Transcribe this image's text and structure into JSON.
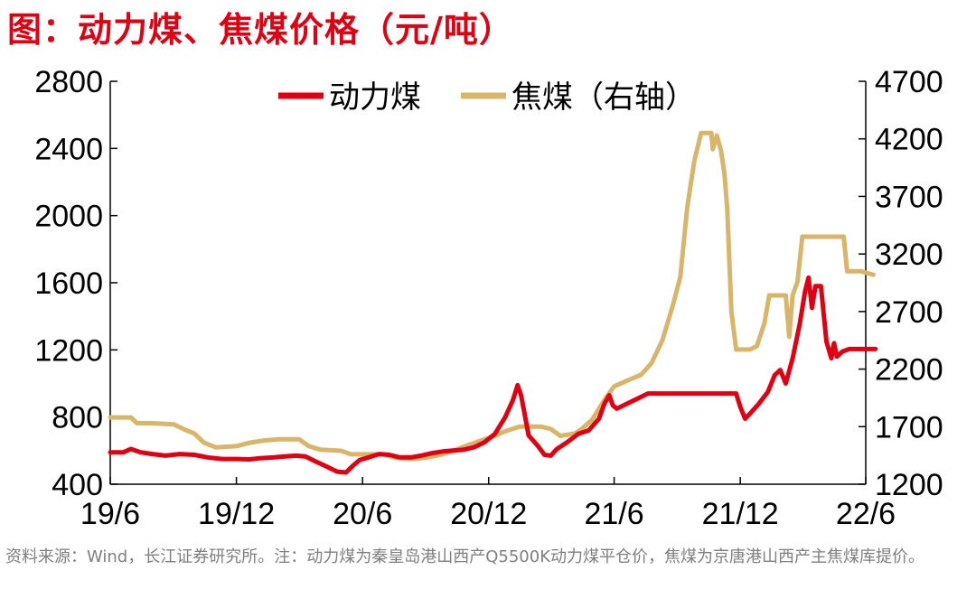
{
  "title": "图：动力煤、焦煤价格（元/吨）",
  "footnote": "资料来源：Wind，长江证券研究所。注：动力煤为秦皇岛港山西产Q5500K动力煤平仓价，焦煤为京唐港山西产主焦煤库提价。",
  "colors": {
    "title": "#e00012",
    "thermal": "#e00012",
    "coking": "#d9b56a",
    "axis": "#000000"
  },
  "chart_data": {
    "type": "line",
    "x_ticks": [
      "19/6",
      "19/12",
      "20/6",
      "20/12",
      "21/6",
      "21/12",
      "22/6"
    ],
    "x_range": [
      "2019-06",
      "2022-06"
    ],
    "y_left": {
      "ticks": [
        400,
        800,
        1200,
        1600,
        2000,
        2400,
        2800
      ],
      "range": [
        400,
        2800
      ]
    },
    "y_right": {
      "ticks": [
        1200,
        1700,
        2200,
        2700,
        3200,
        3700,
        4200,
        4700
      ],
      "range": [
        1200,
        4700
      ]
    },
    "legend": {
      "position": "top-center",
      "entries": [
        "动力煤",
        "焦煤（右轴）"
      ]
    },
    "series": [
      {
        "name": "动力煤",
        "axis": "left",
        "points": [
          [
            "2019-06-01",
            590
          ],
          [
            "2019-06-20",
            590
          ],
          [
            "2019-07-01",
            610
          ],
          [
            "2019-07-15",
            590
          ],
          [
            "2019-08-01",
            580
          ],
          [
            "2019-08-20",
            570
          ],
          [
            "2019-09-10",
            580
          ],
          [
            "2019-10-01",
            575
          ],
          [
            "2019-10-20",
            560
          ],
          [
            "2019-11-10",
            550
          ],
          [
            "2019-12-01",
            550
          ],
          [
            "2019-12-20",
            548
          ],
          [
            "2020-01-05",
            555
          ],
          [
            "2020-01-25",
            560
          ],
          [
            "2020-02-10",
            565
          ],
          [
            "2020-02-25",
            570
          ],
          [
            "2020-03-10",
            565
          ],
          [
            "2020-03-25",
            535
          ],
          [
            "2020-04-10",
            505
          ],
          [
            "2020-04-25",
            475
          ],
          [
            "2020-05-08",
            470
          ],
          [
            "2020-05-18",
            510
          ],
          [
            "2020-05-28",
            545
          ],
          [
            "2020-06-10",
            560
          ],
          [
            "2020-06-25",
            580
          ],
          [
            "2020-07-10",
            575
          ],
          [
            "2020-07-25",
            560
          ],
          [
            "2020-08-10",
            560
          ],
          [
            "2020-08-25",
            570
          ],
          [
            "2020-09-10",
            585
          ],
          [
            "2020-09-25",
            595
          ],
          [
            "2020-10-10",
            600
          ],
          [
            "2020-10-25",
            605
          ],
          [
            "2020-11-10",
            620
          ],
          [
            "2020-11-25",
            650
          ],
          [
            "2020-12-10",
            700
          ],
          [
            "2020-12-25",
            800
          ],
          [
            "2021-01-05",
            900
          ],
          [
            "2021-01-12",
            990
          ],
          [
            "2021-01-17",
            930
          ],
          [
            "2021-01-28",
            690
          ],
          [
            "2021-02-10",
            630
          ],
          [
            "2021-02-20",
            575
          ],
          [
            "2021-03-01",
            570
          ],
          [
            "2021-03-10",
            610
          ],
          [
            "2021-03-25",
            650
          ],
          [
            "2021-04-10",
            700
          ],
          [
            "2021-04-25",
            720
          ],
          [
            "2021-05-10",
            790
          ],
          [
            "2021-05-18",
            880
          ],
          [
            "2021-05-25",
            930
          ],
          [
            "2021-05-30",
            870
          ],
          [
            "2021-06-05",
            850
          ],
          [
            "2021-06-20",
            880
          ],
          [
            "2021-07-05",
            910
          ],
          [
            "2021-07-20",
            940
          ],
          [
            "2021-08-01",
            940
          ],
          [
            "2021-09-01",
            940
          ],
          [
            "2021-10-01",
            940
          ],
          [
            "2021-11-01",
            940
          ],
          [
            "2021-11-25",
            940
          ],
          [
            "2021-12-01",
            860
          ],
          [
            "2021-12-08",
            790
          ],
          [
            "2021-12-15",
            820
          ],
          [
            "2021-12-28",
            880
          ],
          [
            "2022-01-10",
            950
          ],
          [
            "2022-01-20",
            1050
          ],
          [
            "2022-01-28",
            1080
          ],
          [
            "2022-02-05",
            1000
          ],
          [
            "2022-02-15",
            1150
          ],
          [
            "2022-02-25",
            1350
          ],
          [
            "2022-03-05",
            1550
          ],
          [
            "2022-03-10",
            1630
          ],
          [
            "2022-03-15",
            1450
          ],
          [
            "2022-03-20",
            1580
          ],
          [
            "2022-03-28",
            1580
          ],
          [
            "2022-04-05",
            1250
          ],
          [
            "2022-04-12",
            1150
          ],
          [
            "2022-04-16",
            1240
          ],
          [
            "2022-04-20",
            1160
          ],
          [
            "2022-04-28",
            1190
          ],
          [
            "2022-05-08",
            1205
          ],
          [
            "2022-05-25",
            1205
          ],
          [
            "2022-06-15",
            1205
          ]
        ]
      },
      {
        "name": "焦煤（右轴）",
        "axis": "right",
        "points": [
          [
            "2019-06-01",
            1780
          ],
          [
            "2019-07-01",
            1780
          ],
          [
            "2019-07-10",
            1730
          ],
          [
            "2019-08-01",
            1730
          ],
          [
            "2019-09-01",
            1720
          ],
          [
            "2019-09-15",
            1680
          ],
          [
            "2019-10-01",
            1640
          ],
          [
            "2019-10-15",
            1560
          ],
          [
            "2019-11-01",
            1520
          ],
          [
            "2019-12-01",
            1530
          ],
          [
            "2019-12-20",
            1560
          ],
          [
            "2020-01-10",
            1580
          ],
          [
            "2020-02-01",
            1590
          ],
          [
            "2020-03-01",
            1590
          ],
          [
            "2020-03-15",
            1530
          ],
          [
            "2020-04-01",
            1500
          ],
          [
            "2020-05-01",
            1490
          ],
          [
            "2020-05-15",
            1460
          ],
          [
            "2020-06-01",
            1460
          ],
          [
            "2020-07-01",
            1460
          ],
          [
            "2020-07-20",
            1430
          ],
          [
            "2020-08-10",
            1420
          ],
          [
            "2020-09-01",
            1430
          ],
          [
            "2020-09-25",
            1460
          ],
          [
            "2020-10-15",
            1500
          ],
          [
            "2020-11-01",
            1540
          ],
          [
            "2020-11-20",
            1580
          ],
          [
            "2020-12-10",
            1620
          ],
          [
            "2020-12-25",
            1660
          ],
          [
            "2021-01-15",
            1700
          ],
          [
            "2021-02-15",
            1700
          ],
          [
            "2021-03-01",
            1680
          ],
          [
            "2021-03-15",
            1620
          ],
          [
            "2021-04-05",
            1640
          ],
          [
            "2021-04-15",
            1680
          ],
          [
            "2021-04-30",
            1760
          ],
          [
            "2021-05-20",
            1950
          ],
          [
            "2021-06-01",
            2050
          ],
          [
            "2021-06-20",
            2100
          ],
          [
            "2021-07-10",
            2150
          ],
          [
            "2021-07-25",
            2250
          ],
          [
            "2021-08-10",
            2450
          ],
          [
            "2021-08-25",
            2750
          ],
          [
            "2021-09-05",
            3000
          ],
          [
            "2021-09-15",
            3600
          ],
          [
            "2021-09-25",
            4000
          ],
          [
            "2021-10-05",
            4250
          ],
          [
            "2021-10-20",
            4250
          ],
          [
            "2021-10-22",
            4110
          ],
          [
            "2021-10-28",
            4230
          ],
          [
            "2021-11-03",
            4100
          ],
          [
            "2021-11-08",
            3900
          ],
          [
            "2021-11-12",
            3600
          ],
          [
            "2021-11-18",
            2700
          ],
          [
            "2021-11-25",
            2370
          ],
          [
            "2021-12-15",
            2370
          ],
          [
            "2021-12-25",
            2400
          ],
          [
            "2022-01-05",
            2600
          ],
          [
            "2022-01-12",
            2840
          ],
          [
            "2022-02-05",
            2840
          ],
          [
            "2022-02-10",
            2480
          ],
          [
            "2022-02-15",
            2840
          ],
          [
            "2022-02-22",
            2960
          ],
          [
            "2022-03-01",
            3350
          ],
          [
            "2022-04-01",
            3350
          ],
          [
            "2022-04-30",
            3350
          ],
          [
            "2022-05-05",
            3050
          ],
          [
            "2022-05-25",
            3050
          ],
          [
            "2022-06-12",
            3020
          ]
        ]
      }
    ]
  }
}
